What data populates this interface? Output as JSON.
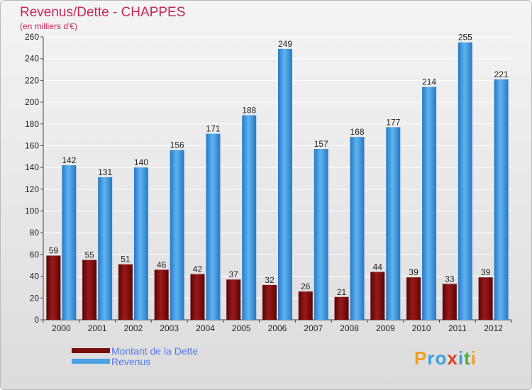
{
  "title": "Revenus/Dette - CHAPPES",
  "subtitle": "(en milliers d'€)",
  "colors": {
    "dette": "#7a0c0c",
    "revenus": "#4aa3e8",
    "title": "#c8285a",
    "legend_text": "#5577ee"
  },
  "legend": {
    "dette_label": "Montant de la Dette",
    "revenus_label": "Revenus"
  },
  "logo": {
    "letters": [
      "P",
      "r",
      "o",
      "x",
      "i",
      "t",
      "i"
    ],
    "colors": [
      "#f0a020",
      "#3a9fe0",
      "#3a9fe0",
      "#e04020",
      "#3a9fe0",
      "#50b040",
      "#f0a020"
    ]
  },
  "chart_data": {
    "type": "bar",
    "title": "Revenus/Dette - CHAPPES",
    "ylabel": "(en milliers d'€)",
    "xlabel": "",
    "ylim": [
      0,
      260
    ],
    "yticks": [
      0,
      20,
      40,
      60,
      80,
      100,
      120,
      140,
      160,
      180,
      200,
      220,
      240,
      260
    ],
    "categories": [
      "2000",
      "2001",
      "2002",
      "2003",
      "2004",
      "2005",
      "2006",
      "2007",
      "2008",
      "2009",
      "2010",
      "2011",
      "2012"
    ],
    "series": [
      {
        "name": "Montant de la Dette",
        "values": [
          59,
          55,
          51,
          46,
          42,
          37,
          32,
          26,
          21,
          44,
          39,
          33,
          39
        ]
      },
      {
        "name": "Revenus",
        "values": [
          142,
          131,
          140,
          156,
          171,
          188,
          249,
          157,
          168,
          177,
          214,
          255,
          221
        ]
      }
    ],
    "grid": true
  }
}
